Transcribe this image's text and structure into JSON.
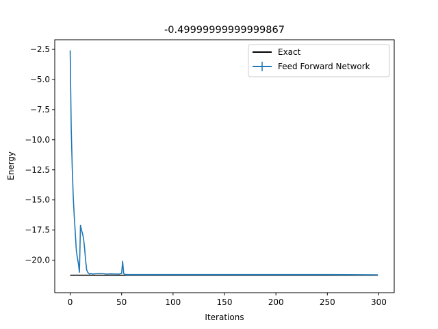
{
  "chart_data": {
    "type": "line",
    "title": "-0.49999999999999867",
    "xlabel": "Iterations",
    "ylabel": "Energy",
    "xlim": [
      -15,
      315
    ],
    "ylim": [
      -22.7,
      -1.7
    ],
    "xticks": [
      0,
      50,
      100,
      150,
      200,
      250,
      300
    ],
    "xtick_labels": [
      "0",
      "50",
      "100",
      "150",
      "200",
      "250",
      "300"
    ],
    "yticks": [
      -2.5,
      -5.0,
      -7.5,
      -10.0,
      -12.5,
      -15.0,
      -17.5,
      -20.0
    ],
    "ytick_labels": [
      "−2.5",
      "−5.0",
      "−7.5",
      "−10.0",
      "−12.5",
      "−15.0",
      "−17.5",
      "−20.0"
    ],
    "grid": false,
    "legend_position": "top-right",
    "colors": {
      "exact": "#000000",
      "ffn": "#1f77b4"
    },
    "series": [
      {
        "name": "Exact",
        "x": [
          0,
          299
        ],
        "y": [
          -21.25,
          -21.25
        ]
      },
      {
        "name": "Feed Forward Network",
        "x": [
          0,
          1,
          2,
          3,
          4,
          5,
          6,
          7,
          8,
          9,
          10,
          11,
          12,
          13,
          14,
          15,
          16,
          17,
          18,
          19,
          20,
          22,
          25,
          30,
          35,
          40,
          45,
          48,
          49,
          50,
          51,
          52,
          53,
          55,
          60,
          70,
          80,
          100,
          150,
          200,
          250,
          299
        ],
        "y": [
          -2.6,
          -9.0,
          -12.3,
          -14.8,
          -16.4,
          -17.8,
          -19.2,
          -19.8,
          -20.3,
          -21.0,
          -17.1,
          -17.5,
          -17.8,
          -18.2,
          -19.0,
          -20.0,
          -20.8,
          -21.0,
          -21.1,
          -21.15,
          -21.1,
          -21.15,
          -21.12,
          -21.1,
          -21.15,
          -21.13,
          -21.15,
          -21.15,
          -21.1,
          -21.1,
          -20.1,
          -21.1,
          -21.18,
          -21.2,
          -21.2,
          -21.2,
          -21.2,
          -21.2,
          -21.2,
          -21.2,
          -21.2,
          -21.22
        ]
      }
    ]
  }
}
